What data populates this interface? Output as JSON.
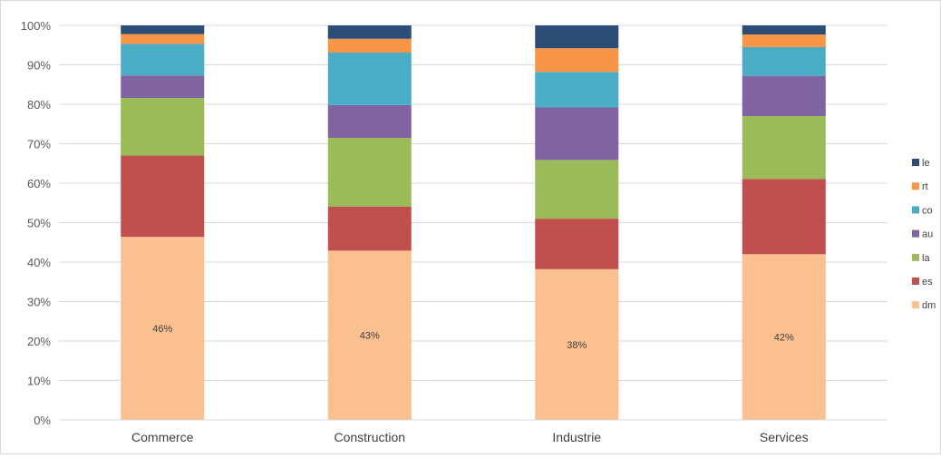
{
  "chart_data": {
    "type": "bar",
    "stacked": true,
    "percent": true,
    "categories": [
      "Commerce",
      "Construction",
      "Industrie",
      "Services"
    ],
    "series": [
      {
        "name": "dm",
        "color": "#FAC090",
        "values": [
          46.4,
          42.9,
          38.2,
          42.0
        ]
      },
      {
        "name": "es",
        "color": "#C0504D",
        "values": [
          20.6,
          11.2,
          12.8,
          19.1
        ]
      },
      {
        "name": "la",
        "color": "#9BBB59",
        "values": [
          14.6,
          17.4,
          14.9,
          15.9
        ]
      },
      {
        "name": "au",
        "color": "#8064A2",
        "values": [
          5.7,
          8.3,
          13.3,
          10.2
        ]
      },
      {
        "name": "co",
        "color": "#4BACC6",
        "values": [
          8.0,
          13.3,
          9.0,
          7.3
        ]
      },
      {
        "name": "rt",
        "color": "#F79646",
        "values": [
          2.5,
          3.5,
          6.0,
          3.2
        ]
      },
      {
        "name": "le",
        "color": "#2C4D75",
        "values": [
          2.2,
          3.4,
          5.8,
          2.3
        ]
      }
    ],
    "data_labels": [
      {
        "series": "dm",
        "category": "Commerce",
        "text": "46%"
      },
      {
        "series": "dm",
        "category": "Construction",
        "text": "43%"
      },
      {
        "series": "dm",
        "category": "Industrie",
        "text": "38%"
      },
      {
        "series": "dm",
        "category": "Services",
        "text": "42%"
      }
    ],
    "yticks": [
      "0%",
      "10%",
      "20%",
      "30%",
      "40%",
      "50%",
      "60%",
      "70%",
      "80%",
      "90%",
      "100%"
    ],
    "ylim": [
      0,
      100
    ],
    "grid": true,
    "legend": "right",
    "legend_order": [
      "le",
      "rt",
      "co",
      "au",
      "la",
      "es",
      "dm"
    ]
  }
}
